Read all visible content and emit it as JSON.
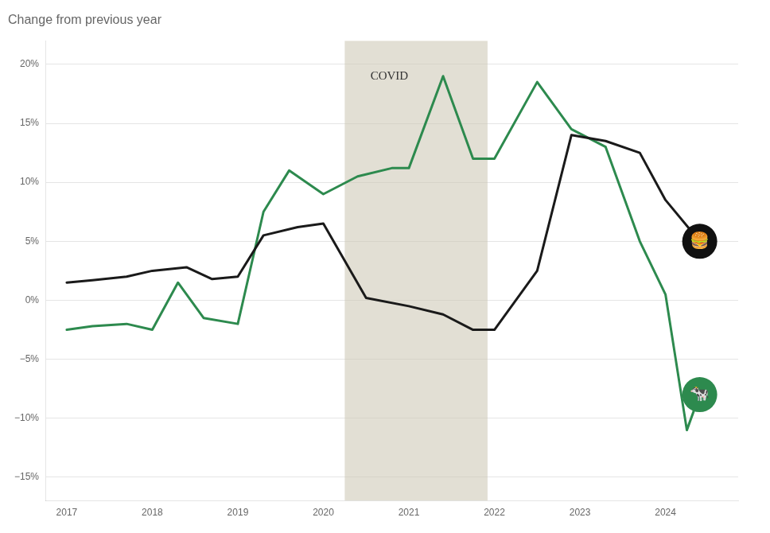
{
  "chart_data": {
    "type": "line",
    "title": "Change from previous year",
    "xlim": [
      2016.75,
      2024.85
    ],
    "xticks": [
      2017,
      2018,
      2019,
      2020,
      2021,
      2022,
      2023,
      2024
    ],
    "ylim": [
      -17,
      22
    ],
    "yticks": [
      {
        "value": -15,
        "label": "−15%"
      },
      {
        "value": -10,
        "label": "−10%"
      },
      {
        "value": -5,
        "label": "−5%"
      },
      {
        "value": 0,
        "label": "0%"
      },
      {
        "value": 5,
        "label": "5%"
      },
      {
        "value": 10,
        "label": "10%"
      },
      {
        "value": 15,
        "label": "15%"
      },
      {
        "value": 20,
        "label": "20%"
      }
    ],
    "grid": "y",
    "series": [
      {
        "color": "#1a1a1a",
        "x": [
          2017.0,
          2017.3,
          2017.7,
          2018.0,
          2018.4,
          2018.7,
          2019.0,
          2019.3,
          2019.7,
          2020.0,
          2020.5,
          2021.0,
          2021.4,
          2021.75,
          2022.0,
          2022.5,
          2022.9,
          2023.3,
          2023.7,
          2024.0,
          2024.4
        ],
        "values": [
          1.5,
          1.7,
          2.0,
          2.5,
          2.8,
          1.8,
          2.0,
          5.5,
          6.2,
          6.5,
          0.2,
          -0.5,
          -1.2,
          -2.5,
          -2.5,
          2.5,
          14.0,
          13.5,
          12.5,
          8.5,
          5.0
        ]
      },
      {
        "color": "#2d8a4e",
        "x": [
          2017.0,
          2017.3,
          2017.7,
          2018.0,
          2018.3,
          2018.6,
          2019.0,
          2019.3,
          2019.6,
          2020.0,
          2020.4,
          2020.8,
          2021.0,
          2021.4,
          2021.75,
          2022.0,
          2022.5,
          2022.9,
          2023.3,
          2023.7,
          2024.0,
          2024.25,
          2024.4
        ],
        "values": [
          -2.5,
          -2.2,
          -2.0,
          -2.5,
          1.5,
          -1.5,
          -2.0,
          7.5,
          11.0,
          9.0,
          10.5,
          11.2,
          11.2,
          19.0,
          12.0,
          12.0,
          18.5,
          14.5,
          13.0,
          5.0,
          0.5,
          -11.0,
          -8.0
        ]
      }
    ],
    "spans": [
      {
        "x_start": 2020.25,
        "x_end": 2021.92,
        "color": "#cbc5b0"
      }
    ],
    "annotations": [
      {
        "text": "COVID",
        "x": 2020.55,
        "y": 19.5
      },
      {
        "text": "🍔",
        "x": 2024.4,
        "y": 5.0,
        "color": "#111111"
      },
      {
        "text": "🐄",
        "x": 2024.4,
        "y": -8.0,
        "color": "#2d8a4e"
      }
    ]
  }
}
